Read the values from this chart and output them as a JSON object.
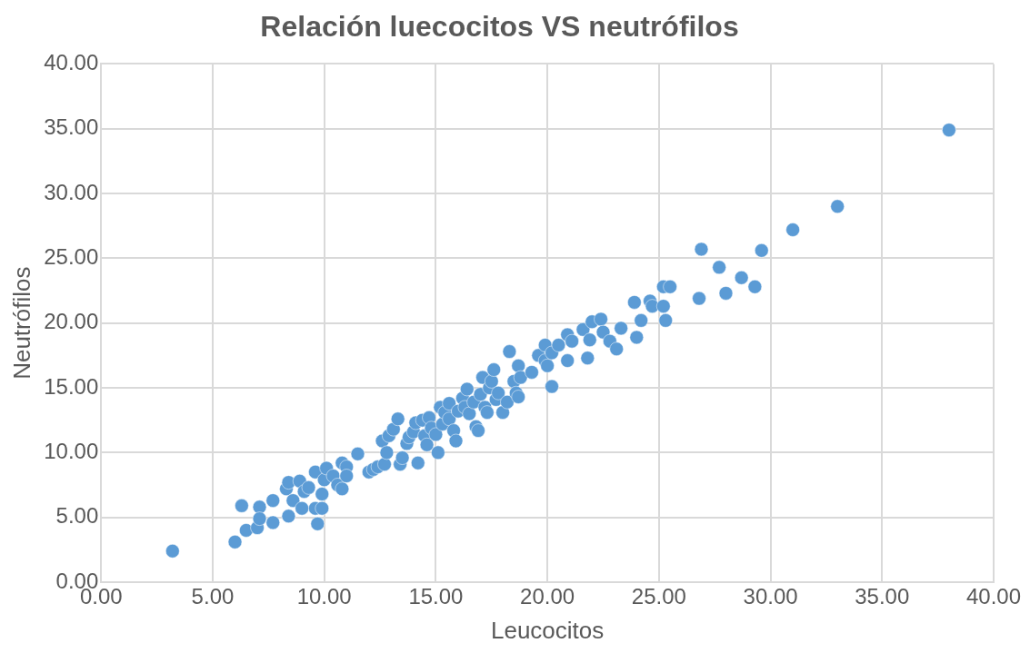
{
  "chart_data": {
    "type": "scatter",
    "title": "Relación luecocitos VS neutrófilos",
    "xlabel": "Leucocitos",
    "ylabel": "Neutrófilos",
    "xlim": [
      0,
      40
    ],
    "ylim": [
      0,
      40
    ],
    "xticks": [
      {
        "value": 0,
        "label": "0.00"
      },
      {
        "value": 5,
        "label": "5.00"
      },
      {
        "value": 10,
        "label": "10.00"
      },
      {
        "value": 15,
        "label": "15.00"
      },
      {
        "value": 20,
        "label": "20.00"
      },
      {
        "value": 25,
        "label": "25.00"
      },
      {
        "value": 30,
        "label": "30.00"
      },
      {
        "value": 35,
        "label": "35.00"
      },
      {
        "value": 40,
        "label": "40.00"
      }
    ],
    "yticks": [
      {
        "value": 0,
        "label": "0.00"
      },
      {
        "value": 5,
        "label": "5.00"
      },
      {
        "value": 10,
        "label": "10.00"
      },
      {
        "value": 15,
        "label": "15.00"
      },
      {
        "value": 20,
        "label": "20.00"
      },
      {
        "value": 25,
        "label": "25.00"
      },
      {
        "value": 30,
        "label": "30.00"
      },
      {
        "value": 35,
        "label": "35.00"
      },
      {
        "value": 40,
        "label": "40.00"
      }
    ],
    "grid": true,
    "legend": false,
    "marker": "circle",
    "series": [
      {
        "color": "#5b9bd5",
        "x": [
          3.2,
          6.0,
          6.3,
          6.5,
          7.0,
          7.1,
          7.1,
          7.7,
          7.7,
          8.3,
          8.4,
          8.4,
          8.6,
          8.9,
          9.0,
          9.1,
          9.3,
          9.6,
          9.6,
          9.7,
          9.9,
          9.9,
          10.0,
          10.1,
          10.4,
          10.6,
          10.8,
          10.8,
          11.0,
          11.0,
          11.5,
          12.0,
          12.2,
          12.4,
          12.6,
          12.7,
          12.8,
          12.9,
          13.1,
          13.3,
          13.4,
          13.5,
          13.7,
          13.8,
          14.0,
          14.1,
          14.2,
          14.4,
          14.5,
          14.6,
          14.7,
          14.8,
          15.0,
          15.1,
          15.2,
          15.3,
          15.4,
          15.6,
          15.6,
          15.8,
          15.9,
          16.0,
          16.2,
          16.3,
          16.4,
          16.5,
          16.7,
          16.8,
          16.9,
          17.0,
          17.1,
          17.2,
          17.3,
          17.4,
          17.5,
          17.6,
          17.7,
          17.8,
          18.0,
          18.2,
          18.3,
          18.5,
          18.6,
          18.7,
          18.7,
          18.8,
          19.3,
          19.6,
          19.9,
          19.9,
          20.0,
          20.2,
          20.2,
          20.5,
          20.9,
          20.9,
          21.1,
          21.6,
          21.8,
          21.9,
          22.0,
          22.4,
          22.5,
          22.8,
          23.1,
          23.3,
          23.9,
          24.0,
          24.2,
          24.6,
          24.7,
          25.2,
          25.2,
          25.3,
          25.5,
          26.8,
          26.9,
          27.7,
          28.0,
          28.7,
          29.3,
          29.6,
          31.0,
          33.0,
          38.0
        ],
        "values": [
          2.4,
          3.1,
          5.9,
          4.0,
          4.2,
          5.8,
          4.9,
          4.6,
          6.3,
          7.2,
          7.7,
          5.1,
          6.3,
          7.8,
          5.7,
          7.0,
          7.3,
          8.5,
          5.7,
          4.5,
          5.7,
          6.8,
          7.9,
          8.8,
          8.2,
          7.5,
          7.2,
          9.2,
          8.9,
          8.2,
          9.9,
          8.5,
          8.7,
          8.9,
          10.9,
          9.1,
          10.0,
          11.3,
          11.8,
          12.6,
          9.1,
          9.6,
          10.7,
          11.2,
          11.6,
          12.3,
          9.2,
          12.5,
          11.3,
          10.6,
          12.7,
          11.9,
          11.4,
          10.0,
          13.5,
          12.2,
          13.1,
          13.8,
          12.6,
          11.7,
          10.9,
          13.2,
          14.2,
          13.5,
          14.9,
          13.0,
          13.9,
          12.0,
          11.7,
          14.5,
          15.8,
          13.5,
          13.1,
          15.0,
          15.5,
          16.4,
          14.1,
          14.6,
          13.1,
          13.9,
          17.8,
          15.5,
          14.6,
          16.7,
          14.3,
          15.8,
          16.2,
          17.5,
          18.3,
          17.1,
          16.7,
          15.1,
          17.7,
          18.3,
          17.1,
          19.1,
          18.6,
          19.5,
          17.3,
          18.7,
          20.1,
          20.3,
          19.3,
          18.6,
          18.0,
          19.6,
          21.6,
          18.9,
          20.2,
          21.7,
          21.3,
          22.8,
          21.3,
          20.2,
          22.8,
          21.9,
          25.7,
          24.3,
          22.3,
          23.5,
          22.8,
          25.6,
          27.2,
          29.0,
          34.9
        ]
      }
    ]
  }
}
